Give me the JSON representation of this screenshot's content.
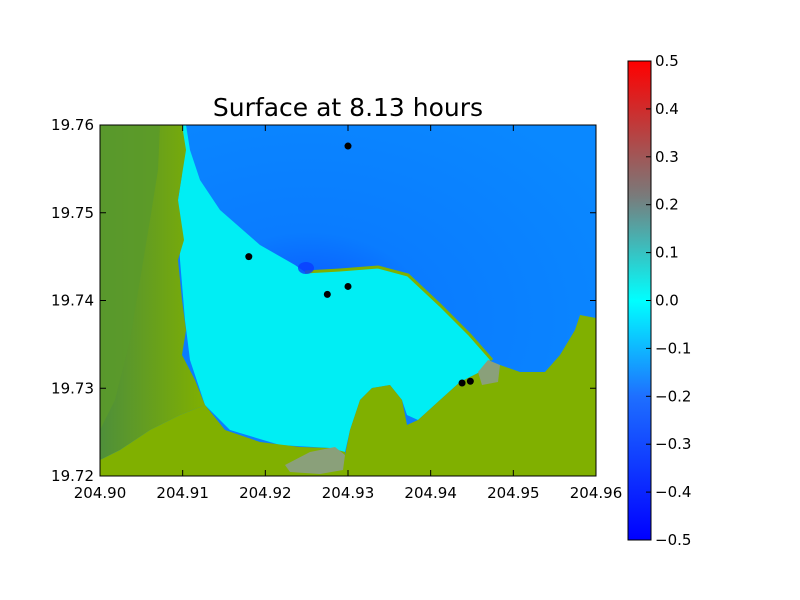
{
  "chart_data": {
    "type": "heatmap",
    "title": "Surface at 8.13 hours",
    "xlim": [
      204.9,
      204.96
    ],
    "ylim": [
      19.72,
      19.76
    ],
    "x_ticks": [
      "204.90",
      "204.91",
      "204.92",
      "204.93",
      "204.94",
      "204.95",
      "204.96"
    ],
    "y_ticks": [
      "19.72",
      "19.73",
      "19.74",
      "19.75",
      "19.76"
    ],
    "colorbar": {
      "range": [
        -0.5,
        0.5
      ],
      "ticks": [
        "0.5",
        "0.4",
        "0.3",
        "0.2",
        "0.1",
        "0.0",
        "−0.1",
        "−0.2",
        "−0.3",
        "−0.4",
        "−0.5"
      ],
      "colors": [
        "#0000ff",
        "#1e90ff",
        "#00ffff",
        "#ff0000"
      ]
    },
    "colors": {
      "land": "#80b000",
      "land_dark": "#5a9a2a",
      "shallow_water": "#00e6f0",
      "deep_water": "#0a80ff",
      "marker": "#000000"
    },
    "gauges": [
      {
        "x": 204.93,
        "y": 19.7576
      },
      {
        "x": 204.918,
        "y": 19.745
      },
      {
        "x": 204.9275,
        "y": 19.7407
      },
      {
        "x": 204.93,
        "y": 19.7416
      },
      {
        "x": 204.9438,
        "y": 19.7306
      },
      {
        "x": 204.9448,
        "y": 19.7308
      }
    ]
  }
}
